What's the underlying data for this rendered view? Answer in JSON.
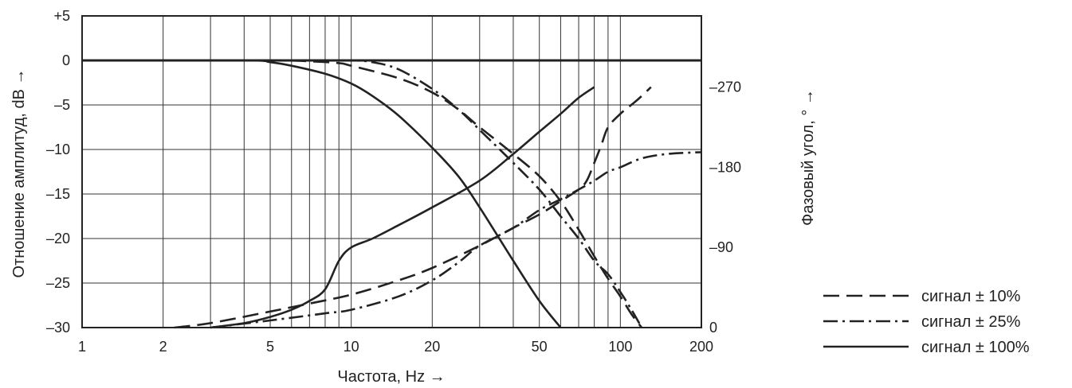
{
  "chart_data": {
    "type": "line",
    "xscale": "log",
    "xlim": [
      1,
      200
    ],
    "ylim": [
      -30,
      5
    ],
    "y2lim": [
      0,
      300
    ],
    "xticks": [
      1,
      2,
      5,
      10,
      20,
      50,
      100,
      200
    ],
    "xtick_labels": [
      "1",
      "2",
      "5",
      "10",
      "20",
      "50",
      "100",
      "200"
    ],
    "yticks": [
      5,
      0,
      -5,
      -10,
      -15,
      -20,
      -25,
      -30
    ],
    "ytick_labels": [
      "+5",
      "0",
      "–5",
      "–10",
      "–15",
      "–20",
      "–25",
      "–30"
    ],
    "y2ticks": [
      270,
      180,
      90,
      0
    ],
    "y2tick_labels": [
      "–270",
      "–180",
      "–90",
      "0"
    ],
    "xlabel": "Частота, Hz →",
    "ylabel": "Отношение амплитуд, dB →",
    "y2label": "Фазовый угол, ° →",
    "grid": true,
    "legend_position": "bottom-right",
    "series": [
      {
        "name": "сигнал ± 10%",
        "style": "dashed",
        "amplitude": [
          [
            1,
            0
          ],
          [
            5,
            0
          ],
          [
            7,
            -0.1
          ],
          [
            9,
            -0.3
          ],
          [
            10,
            -0.6
          ],
          [
            15,
            -2
          ],
          [
            20,
            -3.6
          ],
          [
            25,
            -5.5
          ],
          [
            30,
            -7.5
          ],
          [
            40,
            -10.5
          ],
          [
            50,
            -13
          ],
          [
            60,
            -15.8
          ],
          [
            70,
            -19
          ],
          [
            80,
            -22
          ],
          [
            90,
            -24.5
          ],
          [
            100,
            -26.5
          ],
          [
            110,
            -28.5
          ],
          [
            120,
            -30
          ]
        ],
        "phase": [
          [
            2.2,
            0
          ],
          [
            3,
            5
          ],
          [
            5,
            18
          ],
          [
            7,
            27
          ],
          [
            10,
            37
          ],
          [
            15,
            53
          ],
          [
            20,
            67
          ],
          [
            30,
            92
          ],
          [
            40,
            112
          ],
          [
            50,
            127
          ],
          [
            60,
            142
          ],
          [
            70,
            155
          ],
          [
            75,
            165
          ],
          [
            80,
            185
          ],
          [
            85,
            205
          ],
          [
            90,
            225
          ],
          [
            100,
            240
          ],
          [
            115,
            255
          ],
          [
            130,
            270
          ]
        ]
      },
      {
        "name": "сигнал ± 25%",
        "style": "dash-dot",
        "amplitude": [
          [
            1,
            0
          ],
          [
            7,
            0
          ],
          [
            10,
            0
          ],
          [
            12,
            -0.2
          ],
          [
            15,
            -1
          ],
          [
            20,
            -3.2
          ],
          [
            25,
            -5.5
          ],
          [
            30,
            -7.8
          ],
          [
            40,
            -11.5
          ],
          [
            50,
            -14.5
          ],
          [
            60,
            -17.5
          ],
          [
            70,
            -20
          ],
          [
            80,
            -22.5
          ],
          [
            90,
            -24
          ],
          [
            100,
            -26
          ],
          [
            110,
            -28
          ],
          [
            120,
            -30
          ]
        ],
        "phase": [
          [
            3,
            0
          ],
          [
            5,
            8
          ],
          [
            8,
            16
          ],
          [
            10,
            20
          ],
          [
            15,
            35
          ],
          [
            20,
            53
          ],
          [
            25,
            73
          ],
          [
            30,
            92
          ],
          [
            40,
            112
          ],
          [
            50,
            132
          ],
          [
            60,
            144
          ],
          [
            70,
            155
          ],
          [
            80,
            165
          ],
          [
            90,
            175
          ],
          [
            100,
            180
          ],
          [
            120,
            190
          ],
          [
            150,
            195
          ],
          [
            200,
            197
          ]
        ]
      },
      {
        "name": "сигнал ± 100%",
        "style": "solid",
        "amplitude": [
          [
            1,
            0
          ],
          [
            4,
            0
          ],
          [
            5,
            -0.2
          ],
          [
            6,
            -0.6
          ],
          [
            8,
            -1.5
          ],
          [
            10,
            -2.6
          ],
          [
            12,
            -4
          ],
          [
            15,
            -6.2
          ],
          [
            20,
            -9.8
          ],
          [
            25,
            -13
          ],
          [
            30,
            -16.5
          ],
          [
            40,
            -22.5
          ],
          [
            50,
            -27
          ],
          [
            60,
            -30
          ]
        ],
        "phase": [
          [
            3,
            0
          ],
          [
            4,
            5
          ],
          [
            5,
            12
          ],
          [
            6,
            20
          ],
          [
            7,
            30
          ],
          [
            8,
            43
          ],
          [
            9,
            75
          ],
          [
            10,
            90
          ],
          [
            12,
            100
          ],
          [
            15,
            115
          ],
          [
            20,
            135
          ],
          [
            30,
            165
          ],
          [
            40,
            195
          ],
          [
            50,
            220
          ],
          [
            60,
            240
          ],
          [
            70,
            258
          ],
          [
            80,
            270
          ]
        ]
      }
    ]
  }
}
